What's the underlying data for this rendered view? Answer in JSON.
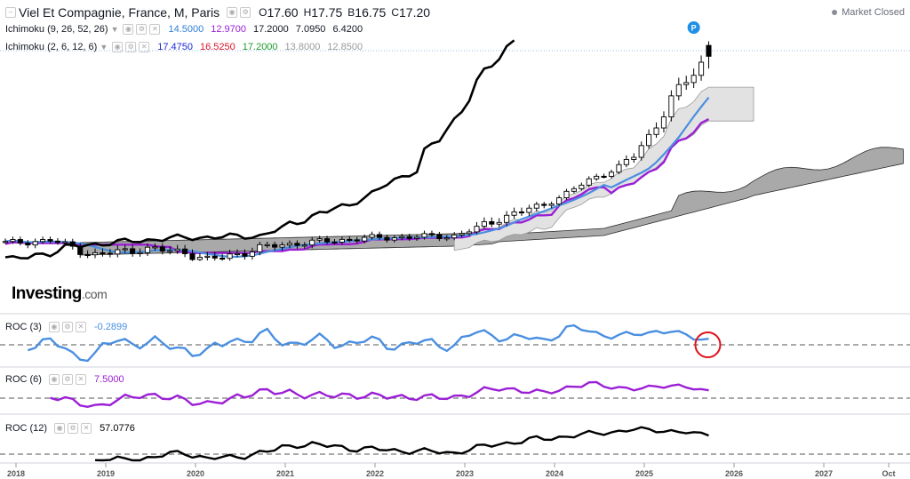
{
  "header": {
    "symbol": "Viel Et Compagnie, France, M, Paris",
    "ohlc": [
      {
        "k": "O",
        "v": "17.60"
      },
      {
        "k": "H",
        "v": "17.75"
      },
      {
        "k": "B",
        "v": "16.75"
      },
      {
        "k": "C",
        "v": "17.20"
      }
    ],
    "status": "Market Closed"
  },
  "indicators": {
    "ichi1": {
      "label": "Ichimoku (9, 26, 52, 26)",
      "values": [
        {
          "v": "14.5000",
          "color": "#2f7fd8"
        },
        {
          "v": "12.9700",
          "color": "#9b1fd6"
        },
        {
          "v": "17.2000",
          "color": "#000000"
        },
        {
          "v": "7.0950",
          "color": "#000000"
        },
        {
          "v": "6.4200",
          "color": "#000000"
        }
      ]
    },
    "ichi2": {
      "label": "Ichimoku (2, 6, 12, 6)",
      "values": [
        {
          "v": "17.4750",
          "color": "#1b2ad8"
        },
        {
          "v": "16.5250",
          "color": "#e0102a"
        },
        {
          "v": "17.2000",
          "color": "#1a9a2a"
        },
        {
          "v": "13.8000",
          "color": "#9a9a9a"
        },
        {
          "v": "12.8500",
          "color": "#9a9a9a"
        }
      ]
    },
    "roc3": {
      "label": "ROC (3)",
      "value": "-0.2899",
      "color": "#4a8fe0"
    },
    "roc6": {
      "label": "ROC (6)",
      "value": "7.5000",
      "color": "#9b1fd6"
    },
    "roc12": {
      "label": "ROC (12)",
      "value": "57.0776",
      "color": "#000000"
    }
  },
  "marker_label": "P",
  "logo": {
    "main": "Investing",
    "suffix": ".com"
  },
  "chart_data": {
    "type": "line",
    "title": "Viel Et Compagnie, France, M, Paris",
    "frequency": "monthly",
    "x_axis_labels": [
      "2018",
      "2019",
      "2020",
      "2021",
      "2022",
      "2023",
      "2024",
      "2025",
      "2026",
      "2027",
      "Oct"
    ],
    "price_panel": {
      "ylim_approx": [
        2.5,
        19
      ],
      "close_keypoints": [
        {
          "date": "2017-12",
          "close": 5.4
        },
        {
          "date": "2018-06",
          "close": 5.6
        },
        {
          "date": "2018-12",
          "close": 4.6
        },
        {
          "date": "2019-06",
          "close": 5.0
        },
        {
          "date": "2019-12",
          "close": 4.8
        },
        {
          "date": "2020-03",
          "close": 4.3
        },
        {
          "date": "2020-12",
          "close": 5.2
        },
        {
          "date": "2021-12",
          "close": 5.8
        },
        {
          "date": "2022-12",
          "close": 6.0
        },
        {
          "date": "2023-06",
          "close": 7.3
        },
        {
          "date": "2023-12",
          "close": 8.1
        },
        {
          "date": "2024-06",
          "close": 10.6
        },
        {
          "date": "2024-12",
          "close": 12.6
        },
        {
          "date": "2025-05",
          "close": 15.6
        },
        {
          "date": "2025-10",
          "close": 17.2
        }
      ],
      "last_candle": {
        "open": 17.6,
        "high": 17.75,
        "low": 16.75,
        "close": 17.2
      },
      "series": [
        {
          "name": "Ichimoku (9, 26, 52, 26) tenkan",
          "color": "#4a8fe0",
          "last": 14.5
        },
        {
          "name": "Ichimoku (9, 26, 52, 26) kijun",
          "color": "#9b1fd6",
          "last": 12.97
        },
        {
          "name": "Ichimoku (9, 26, 52, 26) chikou",
          "color": "#000000",
          "last": 17.2
        },
        {
          "name": "Ichimoku (2, 6, 12, 6) cloud",
          "color": "#d8d8d8",
          "senkou_a": 13.8,
          "senkou_b": 12.85
        },
        {
          "name": "Ichimoku (9, 26, 52, 26) cloud",
          "color": "#a5a5a5",
          "senkou_a": 7.095,
          "senkou_b": 6.42
        }
      ]
    },
    "indicator_panels": [
      {
        "name": "ROC (3)",
        "last": -0.2899,
        "color": "#4a8fe0",
        "zero_line": true
      },
      {
        "name": "ROC (6)",
        "last": 7.5,
        "color": "#9b1fd6",
        "zero_line": true
      },
      {
        "name": "ROC (12)",
        "last": 57.0776,
        "color": "#000000",
        "zero_line": true
      }
    ],
    "grid": false,
    "annotations": [
      "red circle on ROC (3) last value"
    ]
  }
}
